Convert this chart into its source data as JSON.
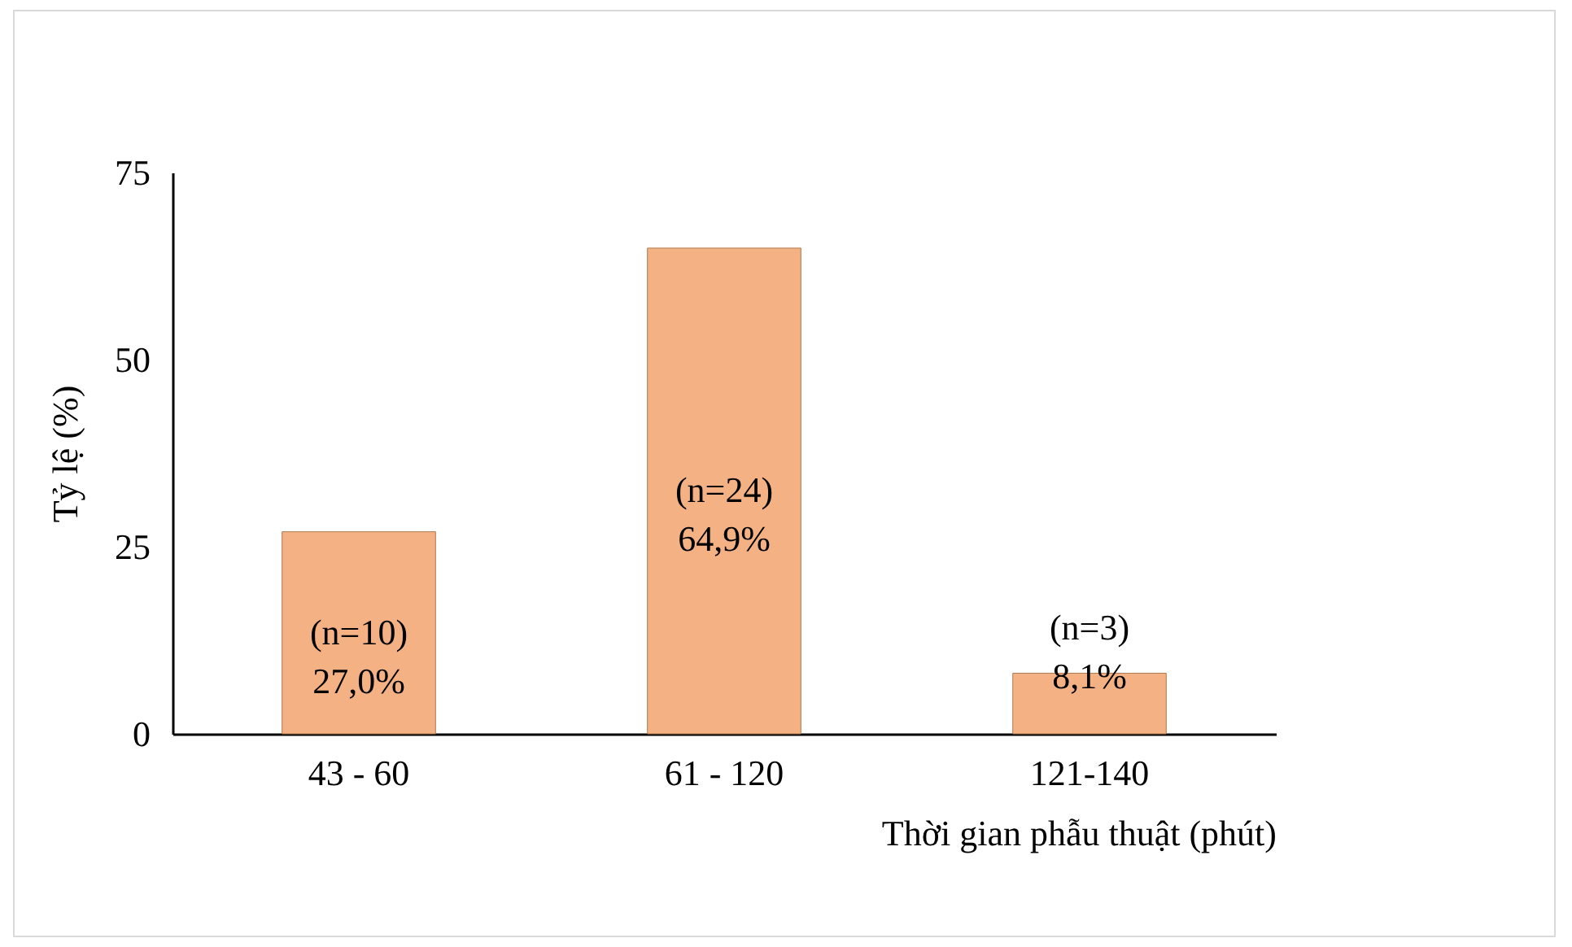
{
  "chart_data": {
    "type": "bar",
    "xlabel": "Thời gian phẫu thuật (phút)",
    "ylabel": "Tỷ lệ (%)",
    "categories": [
      "43 - 60",
      "61 - 120",
      "121-140"
    ],
    "values": [
      27.0,
      64.9,
      8.1
    ],
    "value_labels": [
      "(n=10)\n27,0%",
      "(n=24)\n64,9%",
      "(n=3)\n8,1%"
    ],
    "color": "#f4b183",
    "ylim": [
      0,
      75
    ],
    "yticks": [
      0,
      25,
      50,
      75
    ],
    "grid": false
  }
}
